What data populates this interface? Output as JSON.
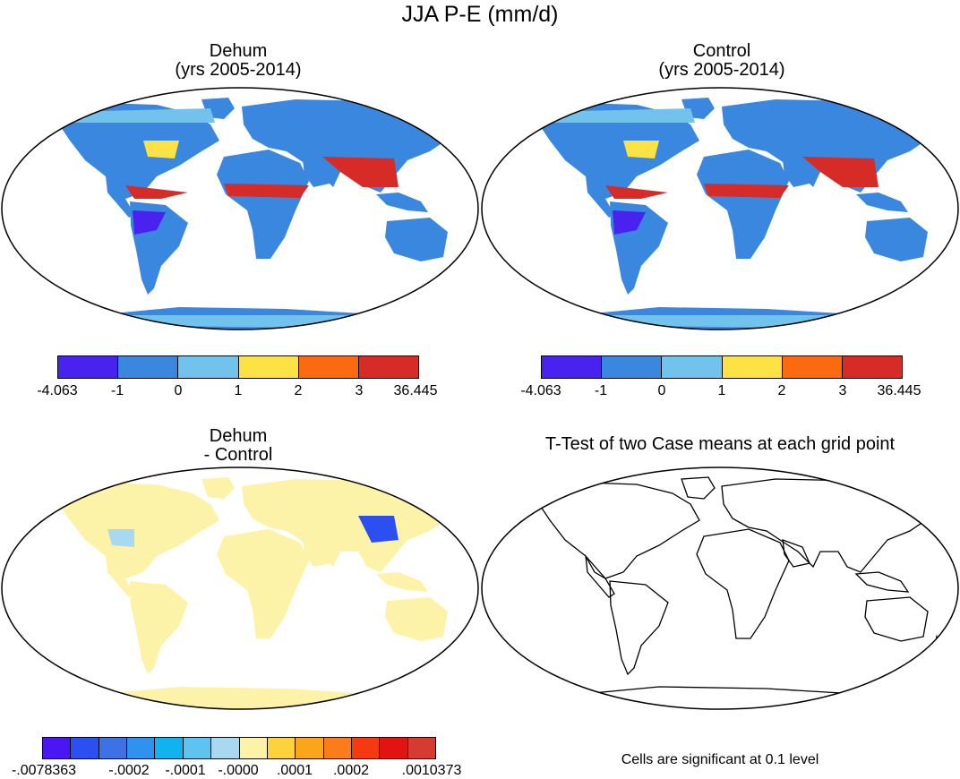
{
  "title": "JJA P-E (mm/d)",
  "panels": {
    "top_left": {
      "title_line1": "Dehum",
      "title_line2": "(yrs 2005-2014)"
    },
    "top_right": {
      "title_line1": "Control",
      "title_line2": "(yrs 2005-2014)"
    },
    "bottom_left": {
      "title_line1": "Dehum",
      "title_line2": "- Control"
    },
    "bottom_right": {
      "title": "T-Test of two Case means at each grid point",
      "note": "Cells are significant at 0.1 level"
    }
  },
  "colorbar_main": {
    "colors": [
      "#4a22f0",
      "#3a87e0",
      "#72c2ee",
      "#fde245",
      "#fb6a10",
      "#d62b27"
    ],
    "labels": [
      "-4.063",
      "-1",
      "0",
      "1",
      "2",
      "3",
      "36.445"
    ]
  },
  "colorbar_diff": {
    "colors": [
      "#4a17f3",
      "#2b4ff0",
      "#3c72e6",
      "#2f92ee",
      "#10b2ef",
      "#5ec3ef",
      "#a9d9f0",
      "#fdf3a8",
      "#fdd23a",
      "#fba61a",
      "#fb7c1a",
      "#f53a12",
      "#e21412",
      "#d63a30"
    ],
    "labels": [
      "-.0078363",
      "-.0002",
      "-.0001",
      "-.0000",
      ".0001",
      ".0002",
      ".0010373"
    ]
  }
}
